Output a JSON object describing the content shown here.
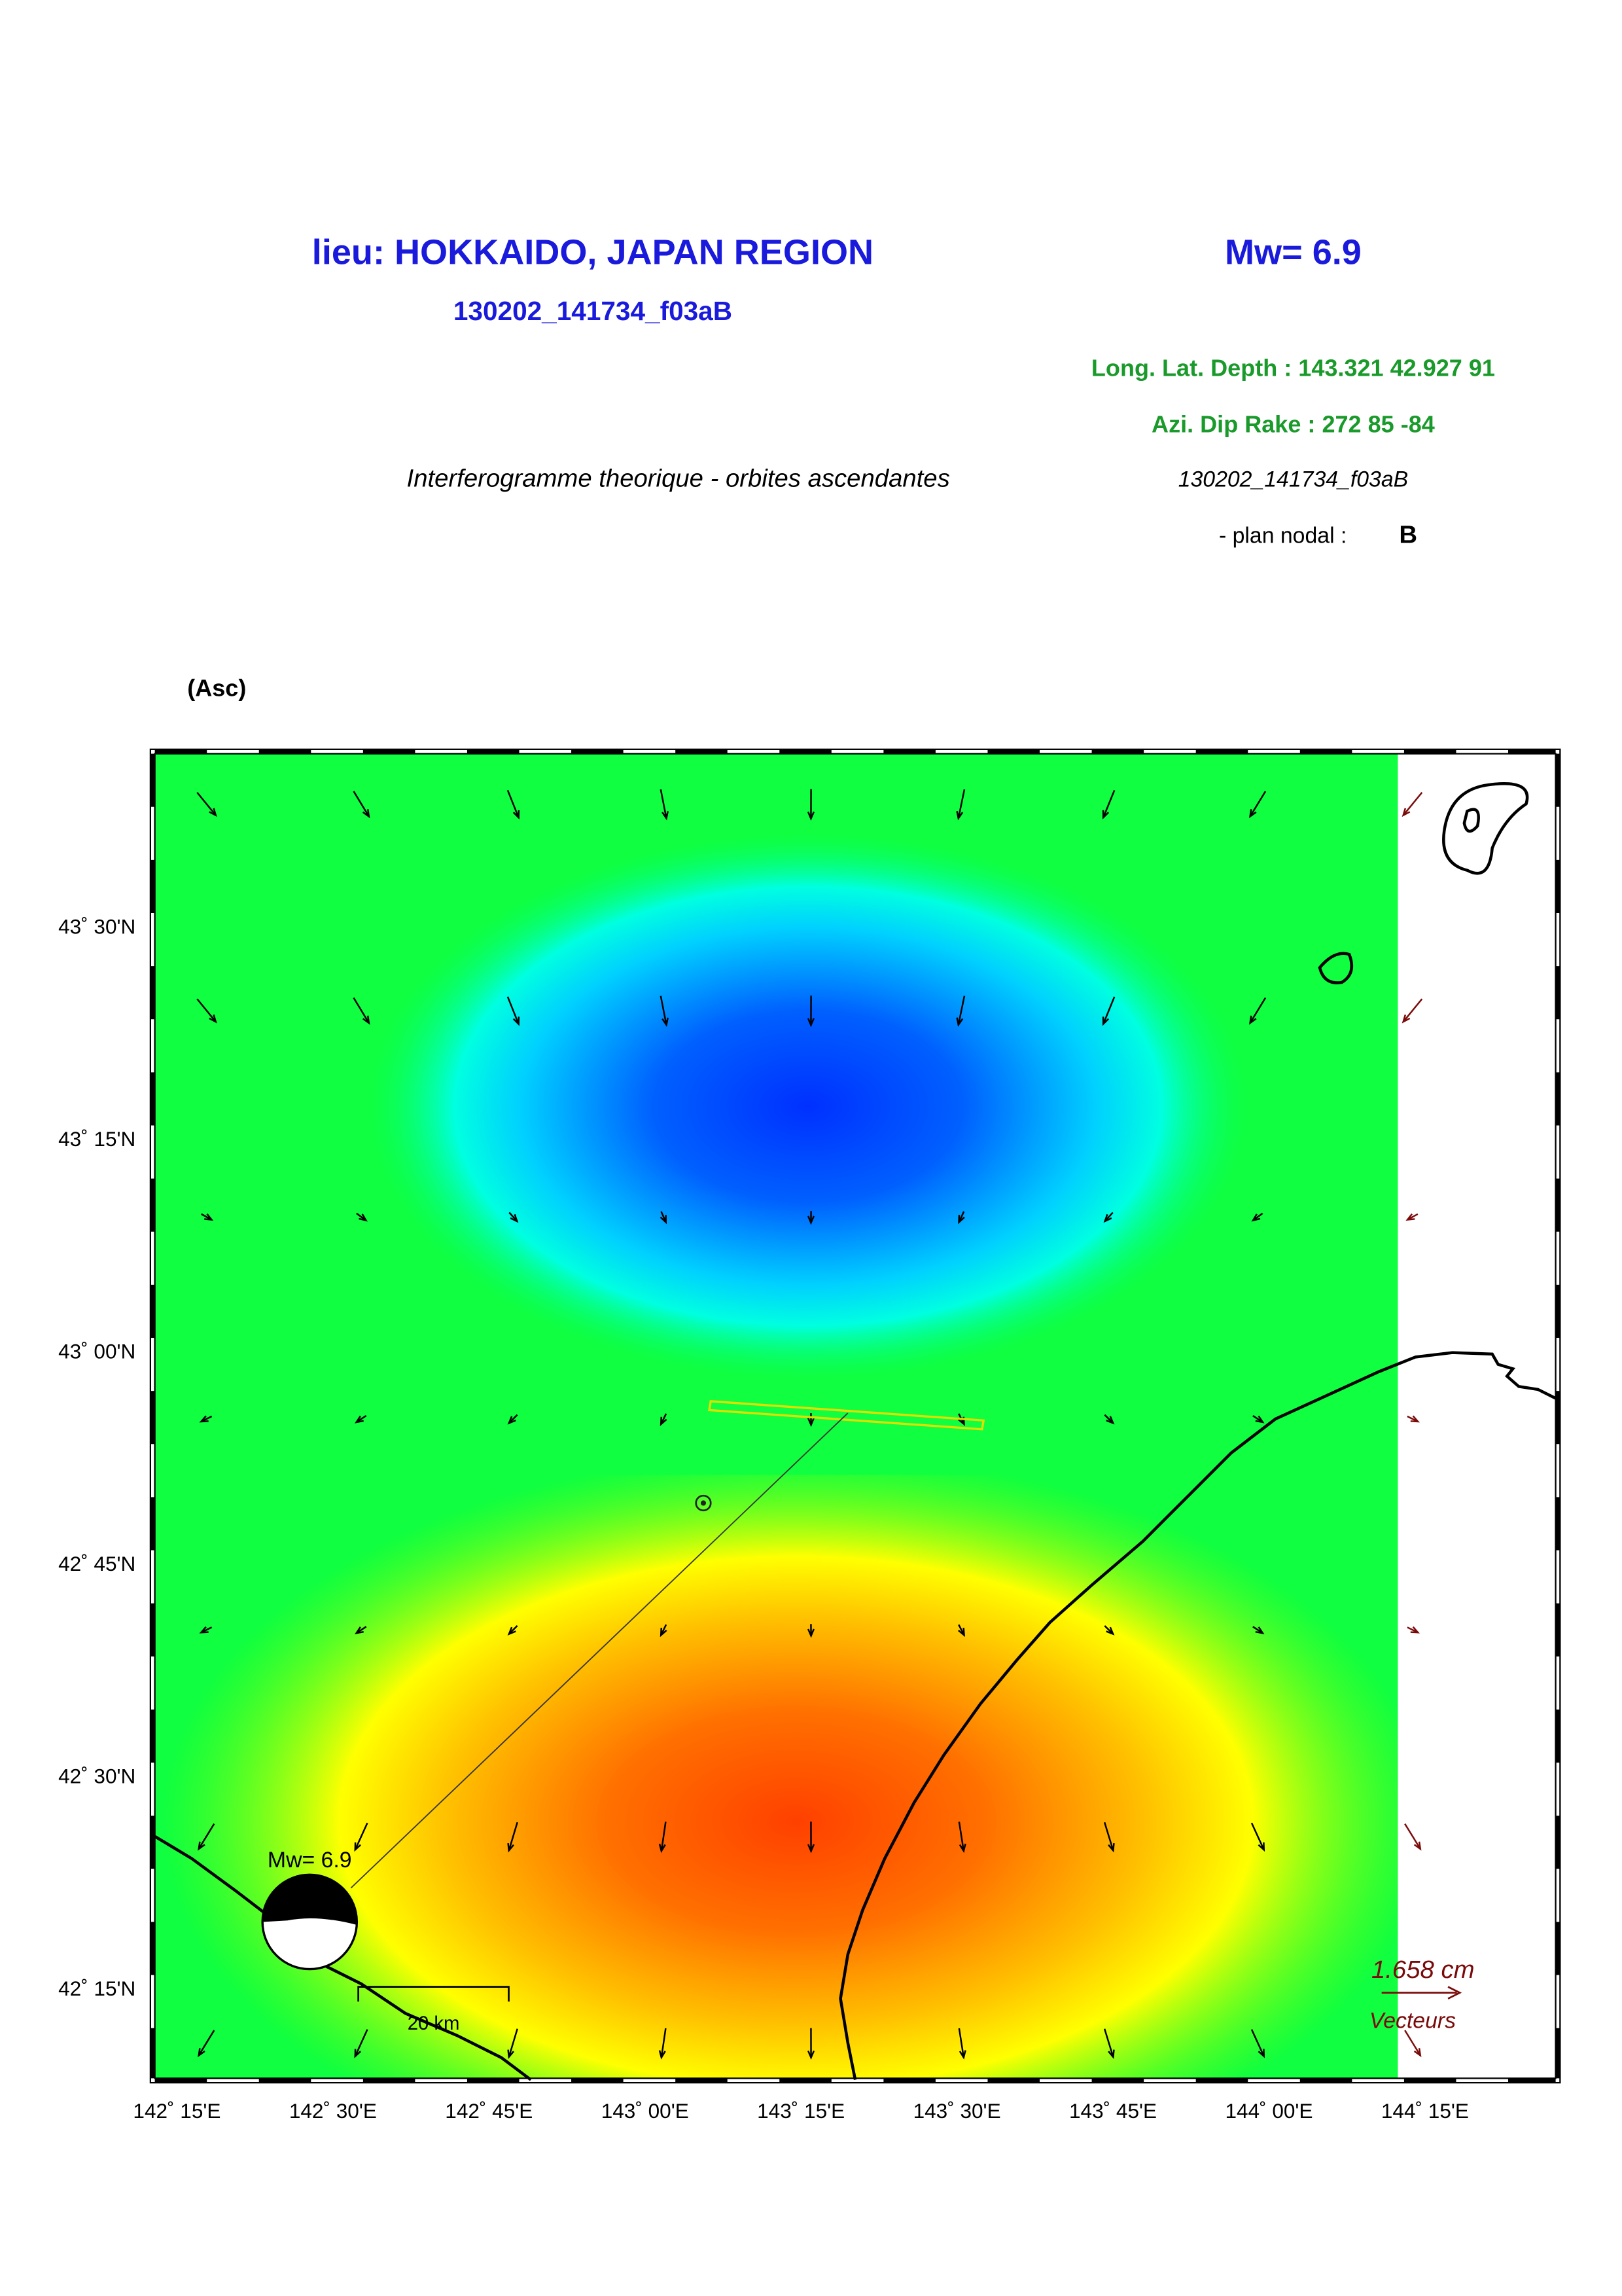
{
  "header": {
    "title": "lieu: HOKKAIDO, JAPAN REGION",
    "magnitude": "Mw= 6.9",
    "event_id": "130202_141734_f03aB"
  },
  "parameters": {
    "location": "Long. Lat. Depth : 143.321 42.927 91",
    "mechanism": "Azi.  Dip   Rake :  272 85 -84"
  },
  "description": {
    "caption": "Interferogramme theorique - orbites ascendantes",
    "event_id": "130202_141734_f03aB",
    "nodal_plane_label": "- plan nodal :",
    "nodal_plane": "B"
  },
  "map": {
    "orbit": "(Asc)",
    "lat_labels": [
      "43˚ 30'N",
      "43˚ 15'N",
      "43˚ 00'N",
      "42˚ 45'N",
      "42˚ 30'N",
      "42˚ 15'N"
    ],
    "lon_labels": [
      "142˚ 15'E",
      "142˚ 30'E",
      "142˚ 45'E",
      "143˚ 00'E",
      "143˚ 15'E",
      "143˚ 30'E",
      "143˚ 45'E",
      "144˚ 00'E",
      "144˚ 15'E"
    ],
    "beachball_label": "Mw= 6.9",
    "scale_bar": "20 km",
    "vector_scale": "1.658  cm",
    "vector_label": "Vecteurs"
  }
}
